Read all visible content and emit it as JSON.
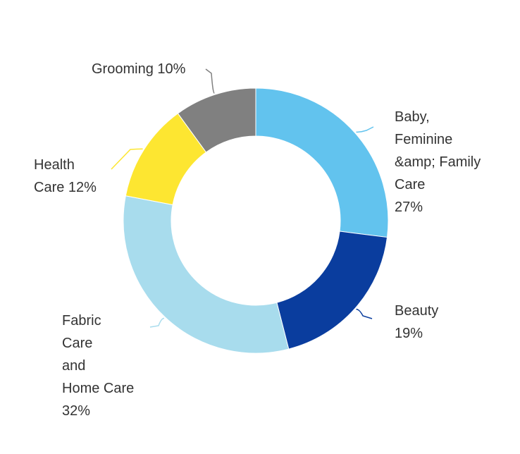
{
  "chart_data": {
    "type": "pie",
    "variant": "donut",
    "categories": [
      "Baby, Feminine &amp; Family Care",
      "Beauty",
      "Fabric Care and Home Care",
      "Health Care",
      "Grooming"
    ],
    "values": [
      27,
      19,
      32,
      12,
      10
    ],
    "unit": "%",
    "colors": [
      "#62c3ee",
      "#0a3d9e",
      "#a8dced",
      "#fde631",
      "#808080"
    ],
    "legend": "none",
    "labels": [
      {
        "lines": [
          "Baby,",
          " Feminine",
          "&amp; Family",
          "Care",
          " 27%"
        ]
      },
      {
        "lines": [
          "Beauty",
          " 19%"
        ]
      },
      {
        "lines": [
          "Fabric",
          " Care",
          " and",
          " Home Care",
          "32%"
        ]
      },
      {
        "lines": [
          "Health",
          " Care 12%"
        ]
      },
      {
        "lines": [
          "Grooming 10%"
        ]
      }
    ]
  }
}
